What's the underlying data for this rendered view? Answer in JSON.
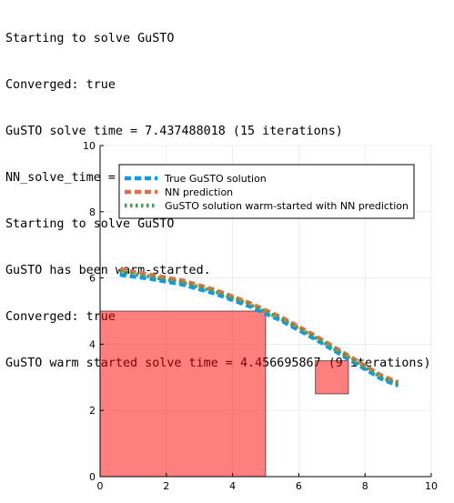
{
  "console": {
    "lines": [
      "Starting to solve GuSTO",
      "Converged: true",
      "GuSTO solve time = 7.437488018 (15 iterations)",
      "NN_solve_time = 0.002333582",
      "Starting to solve GuSTO",
      "GuSTO has been warm-started.",
      "Converged: true",
      "GuSTO warm started solve time = 4.456695867 (9 iterations)"
    ]
  },
  "chart_data": {
    "type": "line",
    "title": "",
    "xlabel": "",
    "ylabel": "",
    "xlim": [
      0,
      10
    ],
    "ylim": [
      0,
      10
    ],
    "xticks": [
      0,
      2,
      4,
      6,
      8,
      10
    ],
    "yticks": [
      0,
      2,
      4,
      6,
      8,
      10
    ],
    "grid": true,
    "legend_position": "top",
    "series": [
      {
        "name": "True GuSTO solution",
        "color": "#009af9",
        "style": "dash",
        "points": [
          [
            0.6,
            6.1
          ],
          [
            1.5,
            5.98
          ],
          [
            2.5,
            5.8
          ],
          [
            3.5,
            5.52
          ],
          [
            4.5,
            5.15
          ],
          [
            5.5,
            4.7
          ],
          [
            6.5,
            4.15
          ],
          [
            7.5,
            3.55
          ],
          [
            8.5,
            2.95
          ],
          [
            9.0,
            2.75
          ]
        ]
      },
      {
        "name": "NN prediction",
        "color": "#e26f46",
        "style": "dash",
        "points": [
          [
            0.6,
            6.25
          ],
          [
            1.5,
            6.1
          ],
          [
            2.5,
            5.92
          ],
          [
            3.5,
            5.63
          ],
          [
            4.5,
            5.25
          ],
          [
            5.5,
            4.8
          ],
          [
            6.5,
            4.25
          ],
          [
            7.5,
            3.65
          ],
          [
            8.5,
            3.05
          ],
          [
            9.0,
            2.85
          ]
        ]
      },
      {
        "name": "GuSTO solution warm-started with NN prediction",
        "color": "#3da44d",
        "style": "dot",
        "points": [
          [
            0.6,
            6.18
          ],
          [
            1.5,
            6.04
          ],
          [
            2.5,
            5.86
          ],
          [
            3.5,
            5.58
          ],
          [
            4.5,
            5.2
          ],
          [
            5.5,
            4.75
          ],
          [
            6.5,
            4.2
          ],
          [
            7.5,
            3.6
          ],
          [
            8.5,
            3.0
          ],
          [
            9.0,
            2.8
          ]
        ]
      }
    ],
    "obstacles": [
      {
        "x": [
          0,
          5
        ],
        "y": [
          0,
          5
        ],
        "color": "#ff0000"
      },
      {
        "x": [
          6.5,
          7.5
        ],
        "y": [
          2.5,
          3.5
        ],
        "color": "#ff0000"
      }
    ]
  }
}
